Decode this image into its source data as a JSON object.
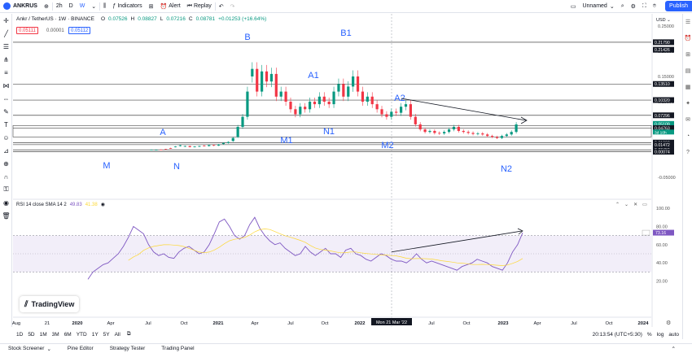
{
  "topbar": {
    "symbol": "ANKRUS",
    "timeframes": [
      "2h",
      "D",
      "W"
    ],
    "active_tf": "W",
    "indicators": "Indicators",
    "alert": "Alert",
    "replay": "Replay",
    "layout_name": "Unnamed",
    "publish": "Publish"
  },
  "legend": {
    "title": "Ankr / TetherUS · 1W · BINANCE",
    "o": "O",
    "o_val": "0.07526",
    "h": "H",
    "h_val": "0.08827",
    "l": "L",
    "l_val": "0.07216",
    "c": "C",
    "c_val": "0.08781",
    "chg": "+0.01253 (+16.64%)",
    "bid": "0.05111",
    "spread": "0.00001",
    "ask": "0.05112"
  },
  "price_axis": {
    "currency": "USD",
    "labels": [
      "0.25000",
      "0.20000",
      "0.15000",
      "0.10000",
      "0.05000",
      "0.00000",
      "-0.05000"
    ],
    "boxes": [
      "0.21790",
      "0.21426",
      "0.13510",
      "0.10320",
      "0.07296",
      "0.05109",
      "0.04763",
      "0.01892",
      "0.01472",
      "0.00459",
      "0.00074"
    ],
    "current": "0.05109",
    "current_time": "3d 10h"
  },
  "rsi": {
    "legend": "RSI 14 close SMA 14 2",
    "val1": "49.83",
    "val2": "41.38",
    "axis": [
      "100.00",
      "80.00",
      "60.00",
      "40.00",
      "20.00"
    ],
    "current": "73.16"
  },
  "annotations": [
    "B",
    "B1",
    "A1",
    "A2",
    "A",
    "N1",
    "M1",
    "M2",
    "M",
    "N",
    "N2"
  ],
  "time_axis": [
    "Aug",
    "2020",
    "Apr",
    "Jul",
    "Oct",
    "2021",
    "Apr",
    "Jul",
    "Oct",
    "2022",
    "Jul",
    "Oct",
    "2023",
    "Apr",
    "Jul",
    "Oct",
    "2024"
  ],
  "time_axis_mid": "21",
  "crosshair_date": "Mon 21 Mar '22",
  "ranges": [
    "1D",
    "5D",
    "1M",
    "3M",
    "6M",
    "YTD",
    "1Y",
    "5Y",
    "All"
  ],
  "clock": "20:13:54 (UTC+5:30)",
  "scale": [
    "%",
    "log",
    "auto"
  ],
  "panels": [
    "Stock Screener",
    "Pine Editor",
    "Strategy Tester",
    "Trading Panel"
  ],
  "logo": "TradingView",
  "colors": {
    "up": "#089981",
    "down": "#f23645",
    "accent": "#2962ff",
    "rsi": "#7e57c2",
    "sma": "#fdd835"
  }
}
